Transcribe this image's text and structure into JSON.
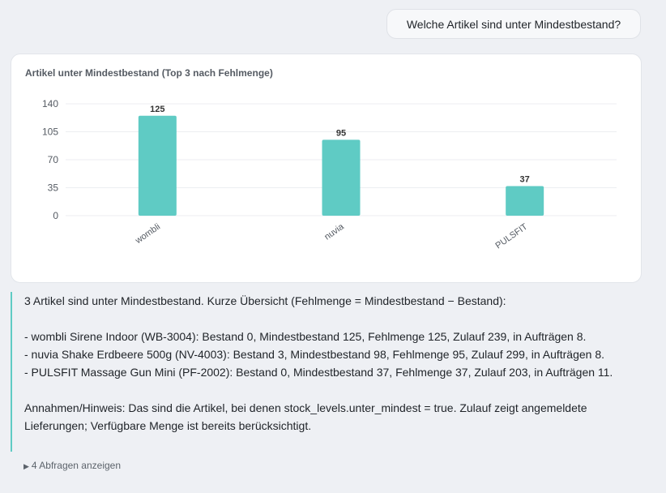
{
  "user_message": "Welche Artikel sind unter Mindestbestand?",
  "chart_data": {
    "type": "bar",
    "title": "Artikel unter Mindestbestand (Top 3 nach Fehlmenge)",
    "categories": [
      "wombli",
      "nuvia",
      "PULSFIT"
    ],
    "values": [
      125,
      95,
      37
    ],
    "ylim": [
      0,
      140
    ],
    "yticks": [
      0,
      35,
      70,
      105,
      140
    ],
    "grid": true,
    "color": "#5fcbc4"
  },
  "answer": {
    "intro": "3 Artikel sind unter Mindestbestand. Kurze Übersicht (Fehlmenge = Mindestbestand − Bestand):",
    "items": [
      "- wombli Sirene Indoor (WB-3004): Bestand 0, Mindestbestand 125, Fehlmenge 125, Zulauf 239, in Aufträgen 8.",
      "- nuvia Shake Erdbeere 500g (NV-4003): Bestand 3, Mindestbestand 98, Fehlmenge 95, Zulauf 299, in Aufträgen 8.",
      "- PULSFIT Massage Gun Mini (PF-2002): Bestand 0, Mindestbestand 37, Fehlmenge 37, Zulauf 203, in Aufträgen 11."
    ],
    "note": "Annahmen/Hinweis: Das sind die Artikel, bei denen stock_levels.unter_mindest = true. Zulauf zeigt angemeldete Lieferungen; Verfügbare Menge ist bereits berücksichtigt."
  },
  "queries_toggle": {
    "arrow": "▶",
    "label": "4 Abfragen anzeigen"
  }
}
